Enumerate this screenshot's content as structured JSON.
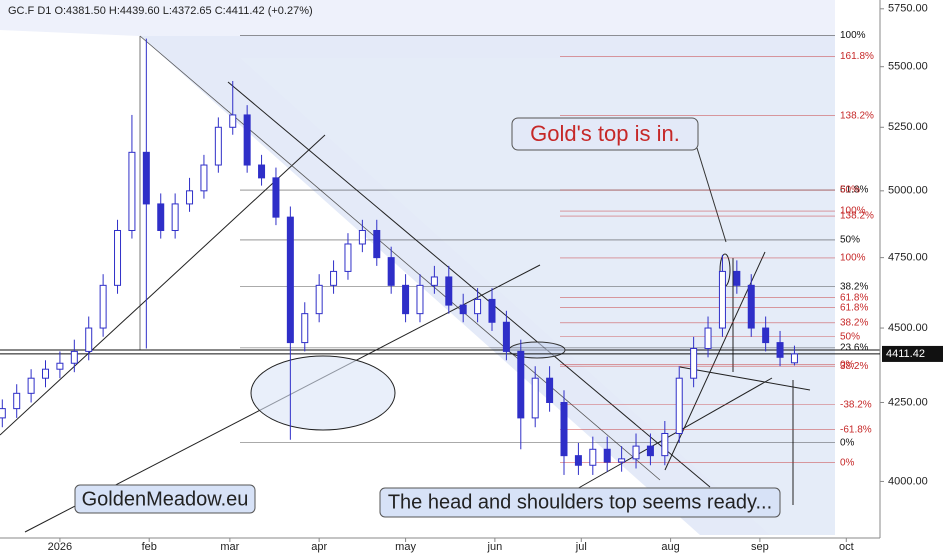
{
  "chart_data": {
    "type": "candlestick",
    "title": "GC.F  D1  O:4381.50  H:4439.60  L:4372.65  C:4411.42  (+0.27%)",
    "color": "#2f2fc8",
    "log_scale": true,
    "x": [
      -20,
      -15,
      -10,
      -5,
      0,
      5,
      10,
      15,
      20,
      25,
      30,
      35,
      40,
      45,
      50,
      55,
      60,
      65,
      70,
      75,
      80,
      85,
      90,
      95,
      100,
      105,
      110,
      115,
      120,
      125,
      130,
      135,
      140,
      145,
      150,
      155,
      160,
      165,
      170,
      175,
      180,
      185,
      190,
      195,
      200,
      205,
      210,
      215,
      220,
      225,
      230,
      235,
      240,
      245,
      250,
      255
    ],
    "open": [
      4200,
      4230,
      4280,
      4330,
      4360,
      4380,
      4420,
      4500,
      4650,
      4850,
      5150,
      4950,
      4850,
      4950,
      5000,
      5100,
      5250,
      5300,
      5100,
      5050,
      4900,
      4450,
      4550,
      4650,
      4700,
      4800,
      4850,
      4750,
      4650,
      4550,
      4650,
      4680,
      4580,
      4550,
      4600,
      4520,
      4420,
      4200,
      4330,
      4250,
      4080,
      4050,
      4100,
      4060,
      4070,
      4110,
      4080,
      4150,
      4330,
      4430,
      4500,
      4700,
      4650,
      4500,
      4450,
      4381.5
    ],
    "high": [
      4260,
      4310,
      4360,
      4390,
      4420,
      4460,
      4540,
      4690,
      4890,
      5300,
      5620,
      4990,
      4990,
      5050,
      5140,
      5290,
      5440,
      5340,
      5140,
      5090,
      4940,
      4590,
      4690,
      4740,
      4840,
      4890,
      4890,
      4790,
      4690,
      4690,
      4720,
      4720,
      4620,
      4640,
      4640,
      4560,
      4460,
      4370,
      4370,
      4290,
      4120,
      4140,
      4140,
      4110,
      4150,
      4150,
      4190,
      4370,
      4470,
      4540,
      4760,
      4740,
      4690,
      4540,
      4490,
      4439.6
    ],
    "low": [
      4170,
      4200,
      4250,
      4300,
      4330,
      4350,
      4390,
      4470,
      4620,
      4820,
      4430,
      4820,
      4820,
      4920,
      4970,
      5070,
      5220,
      5070,
      5020,
      4870,
      4130,
      4420,
      4520,
      4620,
      4670,
      4770,
      4720,
      4620,
      4520,
      4520,
      4620,
      4550,
      4520,
      4520,
      4490,
      4390,
      4100,
      4170,
      4220,
      4020,
      4020,
      4020,
      4030,
      4030,
      4040,
      4050,
      4050,
      4120,
      4300,
      4400,
      4470,
      4620,
      4470,
      4420,
      4370,
      4372.65
    ],
    "close": [
      4230,
      4280,
      4330,
      4360,
      4380,
      4420,
      4500,
      4650,
      4850,
      5150,
      4950,
      4850,
      4950,
      5000,
      5100,
      5250,
      5300,
      5100,
      5050,
      4900,
      4450,
      4550,
      4650,
      4700,
      4800,
      4850,
      4750,
      4650,
      4550,
      4650,
      4680,
      4580,
      4550,
      4600,
      4520,
      4420,
      4200,
      4330,
      4250,
      4080,
      4050,
      4100,
      4060,
      4070,
      4110,
      4080,
      4150,
      4330,
      4430,
      4500,
      4700,
      4650,
      4500,
      4450,
      4400,
      4411.42
    ],
    "xlim": [
      -20.8,
      284.7
    ],
    "xticks": [
      {
        "value": 0,
        "label": "2026"
      },
      {
        "value": 31,
        "label": "feb"
      },
      {
        "value": 59,
        "label": "mar"
      },
      {
        "value": 90,
        "label": "apr"
      },
      {
        "value": 120,
        "label": "may"
      },
      {
        "value": 151,
        "label": "jun"
      },
      {
        "value": 181,
        "label": "jul"
      },
      {
        "value": 212,
        "label": "aug"
      },
      {
        "value": 243,
        "label": "sep"
      },
      {
        "value": 273,
        "label": "oct"
      }
    ],
    "ylim": [
      3830,
      5789
    ],
    "yticks": [
      {
        "value": 4000,
        "label": "4000.00"
      },
      {
        "value": 4250,
        "label": "4250.00"
      },
      {
        "value": 4500,
        "label": "4500.00"
      },
      {
        "value": 4750,
        "label": "4750.00"
      },
      {
        "value": 5000,
        "label": "5000.00"
      },
      {
        "value": 5250,
        "label": "5250.00"
      },
      {
        "value": 5500,
        "label": "5500.00"
      },
      {
        "value": 5750,
        "label": "5750.00"
      }
    ],
    "last_price_label": "4411.42",
    "fib_levels": [
      {
        "label": "100%",
        "value": 5633,
        "color": "#111111"
      },
      {
        "label": "161.8%",
        "value": 5543,
        "color": "#c62828"
      },
      {
        "label": "138.2%",
        "value": 5297,
        "color": "#c62828"
      },
      {
        "label": "61.8%",
        "value": 5003,
        "color": "#111111"
      },
      {
        "label": "50%",
        "value": 5003,
        "color": "#c62828"
      },
      {
        "label": "100%",
        "value": 4923,
        "color": "#c62828"
      },
      {
        "label": "138.2%",
        "value": 4904,
        "color": "#c62828"
      },
      {
        "label": "50%",
        "value": 4815,
        "color": "#111111"
      },
      {
        "label": "100%",
        "value": 4749,
        "color": "#c62828"
      },
      {
        "label": "38.2%",
        "value": 4645,
        "color": "#111111"
      },
      {
        "label": "61.8%",
        "value": 4606,
        "color": "#c62828"
      },
      {
        "label": "61.8%",
        "value": 4571,
        "color": "#c62828"
      },
      {
        "label": "38.2%",
        "value": 4518,
        "color": "#c62828"
      },
      {
        "label": "50%",
        "value": 4470,
        "color": "#c62828"
      },
      {
        "label": "23.6%",
        "value": 4432,
        "color": "#111111"
      },
      {
        "label": "0%",
        "value": 4375,
        "color": "#c62828"
      },
      {
        "label": "38.2%",
        "value": 4370,
        "color": "#c62828"
      },
      {
        "label": "-38.2%",
        "value": 4243,
        "color": "#c62828"
      },
      {
        "label": "-61.8%",
        "value": 4162,
        "color": "#c62828"
      },
      {
        "label": "0%",
        "value": 4121,
        "color": "#111111"
      },
      {
        "label": "0%",
        "value": 4058,
        "color": "#c62828"
      }
    ],
    "annotations": {
      "top": "Gold's top is in.",
      "brand": "GoldenMeadow.eu",
      "pattern": "The head and shoulders top seems ready..."
    }
  }
}
